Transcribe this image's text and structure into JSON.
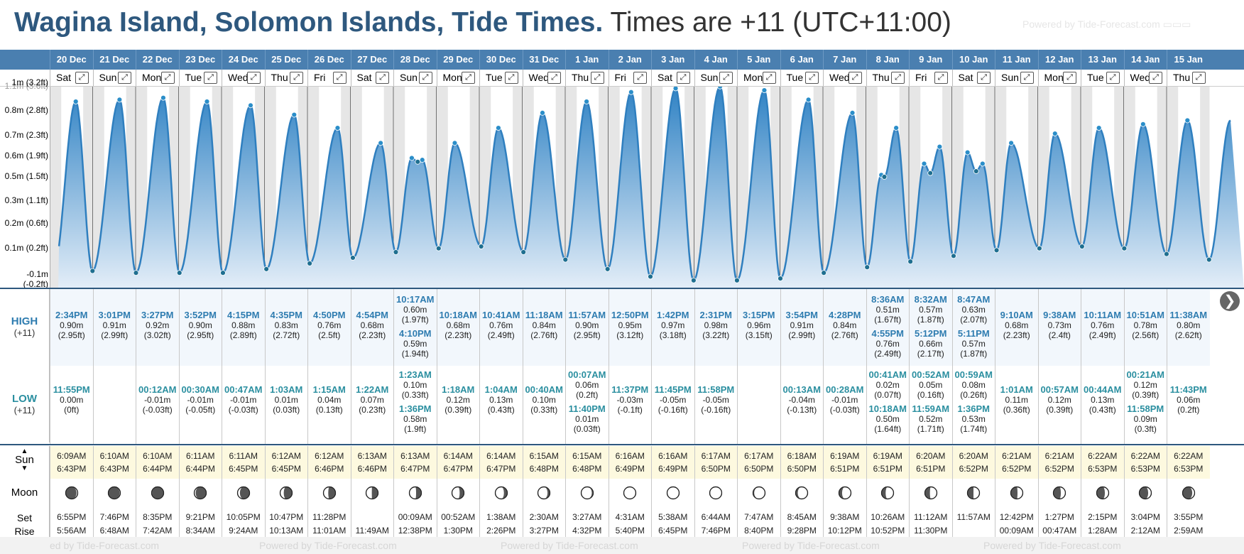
{
  "title": {
    "location": "Wagina Island, Solomon Islands, Tide Times.",
    "timezone": "Times are +11 (UTC+11:00)"
  },
  "powered_by": "Powered by Tide-Forecast.com",
  "powered_by_partial": "ed by Tide-Forecast.com",
  "y_axis_labels": [
    "1m (3.2ft)",
    "0.8m (2.8ft)",
    "0.7m (2.3ft)",
    "0.6m (1.9ft)",
    "0.5m (1.5ft)",
    "0.3m (1.1ft)",
    "0.2m (0.6ft)",
    "0.1m (0.2ft)",
    "-0.1m (-0.2ft)"
  ],
  "y_axis_partial_label": "1.1m (3.6ft)",
  "row_labels": {
    "high": "HIGH",
    "high_tz": "(+11)",
    "low": "LOW",
    "low_tz": "(+11)",
    "sun": "Sun",
    "moon": "Moon",
    "set": "Set",
    "rise": "Rise"
  },
  "days": [
    {
      "date": "20 Dec",
      "day": "Sat",
      "high": [
        {
          "time": "2:34PM",
          "m": "0.90m",
          "ft": "(2.95ft)"
        }
      ],
      "low": [
        {
          "time": "11:55PM",
          "m": "0.00m",
          "ft": "(0ft)"
        }
      ],
      "sunrise": "6:09AM",
      "sunset": "6:43PM",
      "moon_phase": 0.95,
      "moon_set": "6:55PM",
      "moon_rise": "5:56AM"
    },
    {
      "date": "21 Dec",
      "day": "Sun",
      "high": [
        {
          "time": "3:01PM",
          "m": "0.91m",
          "ft": "(2.99ft)"
        }
      ],
      "low": [],
      "sunrise": "6:10AM",
      "sunset": "6:43PM",
      "moon_phase": 0.97,
      "moon_set": "7:46PM",
      "moon_rise": "6:48AM"
    },
    {
      "date": "22 Dec",
      "day": "Mon",
      "high": [
        {
          "time": "3:27PM",
          "m": "0.92m",
          "ft": "(3.02ft)"
        }
      ],
      "low": [
        {
          "time": "00:12AM",
          "m": "-0.01m",
          "ft": "(-0.03ft)"
        }
      ],
      "sunrise": "6:10AM",
      "sunset": "6:44PM",
      "moon_phase": 0.02,
      "moon_set": "8:35PM",
      "moon_rise": "7:42AM"
    },
    {
      "date": "23 Dec",
      "day": "Tue",
      "high": [
        {
          "time": "3:52PM",
          "m": "0.90m",
          "ft": "(2.95ft)"
        }
      ],
      "low": [
        {
          "time": "00:30AM",
          "m": "-0.01m",
          "ft": "(-0.05ft)"
        }
      ],
      "sunrise": "6:11AM",
      "sunset": "6:44PM",
      "moon_phase": 0.06,
      "moon_set": "9:21PM",
      "moon_rise": "8:34AM"
    },
    {
      "date": "24 Dec",
      "day": "Wed",
      "high": [
        {
          "time": "4:15PM",
          "m": "0.88m",
          "ft": "(2.89ft)"
        }
      ],
      "low": [
        {
          "time": "00:47AM",
          "m": "-0.01m",
          "ft": "(-0.03ft)"
        }
      ],
      "sunrise": "6:11AM",
      "sunset": "6:45PM",
      "moon_phase": 0.1,
      "moon_set": "10:05PM",
      "moon_rise": "9:24AM"
    },
    {
      "date": "25 Dec",
      "day": "Thu",
      "high": [
        {
          "time": "4:35PM",
          "m": "0.83m",
          "ft": "(2.72ft)"
        }
      ],
      "low": [
        {
          "time": "1:03AM",
          "m": "0.01m",
          "ft": "(0.03ft)"
        }
      ],
      "sunrise": "6:12AM",
      "sunset": "6:45PM",
      "moon_phase": 0.15,
      "moon_set": "10:47PM",
      "moon_rise": "10:13AM"
    },
    {
      "date": "26 Dec",
      "day": "Fri",
      "high": [
        {
          "time": "4:50PM",
          "m": "0.76m",
          "ft": "(2.5ft)"
        }
      ],
      "low": [
        {
          "time": "1:15AM",
          "m": "0.04m",
          "ft": "(0.13ft)"
        }
      ],
      "sunrise": "6:12AM",
      "sunset": "6:46PM",
      "moon_phase": 0.2,
      "moon_set": "11:28PM",
      "moon_rise": "11:01AM"
    },
    {
      "date": "27 Dec",
      "day": "Sat",
      "high": [
        {
          "time": "4:54PM",
          "m": "0.68m",
          "ft": "(2.23ft)"
        }
      ],
      "low": [
        {
          "time": "1:22AM",
          "m": "0.07m",
          "ft": "(0.23ft)"
        }
      ],
      "sunrise": "6:13AM",
      "sunset": "6:46PM",
      "moon_phase": 0.24,
      "moon_set": "",
      "moon_rise": "11:49AM"
    },
    {
      "date": "28 Dec",
      "day": "Sun",
      "high": [
        {
          "time": "10:17AM",
          "m": "0.60m",
          "ft": "(1.97ft)"
        },
        {
          "time": "4:10PM",
          "m": "0.59m",
          "ft": "(1.94ft)"
        }
      ],
      "low": [
        {
          "time": "1:23AM",
          "m": "0.10m",
          "ft": "(0.33ft)"
        },
        {
          "time": "1:36PM",
          "m": "0.58m",
          "ft": "(1.9ft)"
        }
      ],
      "sunrise": "6:13AM",
      "sunset": "6:47PM",
      "moon_phase": 0.28,
      "moon_set": "00:09AM",
      "moon_rise": "12:38PM"
    },
    {
      "date": "29 Dec",
      "day": "Mon",
      "high": [
        {
          "time": "10:18AM",
          "m": "0.68m",
          "ft": "(2.23ft)"
        }
      ],
      "low": [
        {
          "time": "1:18AM",
          "m": "0.12m",
          "ft": "(0.39ft)"
        }
      ],
      "sunrise": "6:14AM",
      "sunset": "6:47PM",
      "moon_phase": 0.32,
      "moon_set": "00:52AM",
      "moon_rise": "1:30PM"
    },
    {
      "date": "30 Dec",
      "day": "Tue",
      "high": [
        {
          "time": "10:41AM",
          "m": "0.76m",
          "ft": "(2.49ft)"
        }
      ],
      "low": [
        {
          "time": "1:04AM",
          "m": "0.13m",
          "ft": "(0.43ft)"
        }
      ],
      "sunrise": "6:14AM",
      "sunset": "6:47PM",
      "moon_phase": 0.36,
      "moon_set": "1:38AM",
      "moon_rise": "2:26PM"
    },
    {
      "date": "31 Dec",
      "day": "Wed",
      "high": [
        {
          "time": "11:18AM",
          "m": "0.84m",
          "ft": "(2.76ft)"
        }
      ],
      "low": [
        {
          "time": "00:40AM",
          "m": "0.10m",
          "ft": "(0.33ft)"
        }
      ],
      "sunrise": "6:15AM",
      "sunset": "6:48PM",
      "moon_phase": 0.4,
      "moon_set": "2:30AM",
      "moon_rise": "3:27PM"
    },
    {
      "date": "1 Jan",
      "day": "Thu",
      "high": [
        {
          "time": "11:57AM",
          "m": "0.90m",
          "ft": "(2.95ft)"
        }
      ],
      "low": [
        {
          "time": "00:07AM",
          "m": "0.06m",
          "ft": "(0.2ft)"
        },
        {
          "time": "11:40PM",
          "m": "0.01m",
          "ft": "(0.03ft)"
        }
      ],
      "sunrise": "6:15AM",
      "sunset": "6:48PM",
      "moon_phase": 0.44,
      "moon_set": "3:27AM",
      "moon_rise": "4:32PM"
    },
    {
      "date": "2 Jan",
      "day": "Fri",
      "high": [
        {
          "time": "12:50PM",
          "m": "0.95m",
          "ft": "(3.12ft)"
        }
      ],
      "low": [
        {
          "time": "11:37PM",
          "m": "-0.03m",
          "ft": "(-0.1ft)"
        }
      ],
      "sunrise": "6:16AM",
      "sunset": "6:49PM",
      "moon_phase": 0.48,
      "moon_set": "4:31AM",
      "moon_rise": "5:40PM"
    },
    {
      "date": "3 Jan",
      "day": "Sat",
      "high": [
        {
          "time": "1:42PM",
          "m": "0.97m",
          "ft": "(3.18ft)"
        }
      ],
      "low": [
        {
          "time": "11:45PM",
          "m": "-0.05m",
          "ft": "(-0.16ft)"
        }
      ],
      "sunrise": "6:16AM",
      "sunset": "6:49PM",
      "moon_phase": 0.5,
      "moon_set": "5:38AM",
      "moon_rise": "6:45PM"
    },
    {
      "date": "4 Jan",
      "day": "Sun",
      "high": [
        {
          "time": "2:31PM",
          "m": "0.98m",
          "ft": "(3.22ft)"
        }
      ],
      "low": [
        {
          "time": "11:58PM",
          "m": "-0.05m",
          "ft": "(-0.16ft)"
        }
      ],
      "sunrise": "6:17AM",
      "sunset": "6:50PM",
      "moon_phase": 0.52,
      "moon_set": "6:44AM",
      "moon_rise": "7:46PM"
    },
    {
      "date": "5 Jan",
      "day": "Mon",
      "high": [
        {
          "time": "3:15PM",
          "m": "0.96m",
          "ft": "(3.15ft)"
        }
      ],
      "low": [],
      "sunrise": "6:17AM",
      "sunset": "6:50PM",
      "moon_phase": 0.55,
      "moon_set": "7:47AM",
      "moon_rise": "8:40PM"
    },
    {
      "date": "6 Jan",
      "day": "Tue",
      "high": [
        {
          "time": "3:54PM",
          "m": "0.91m",
          "ft": "(2.99ft)"
        }
      ],
      "low": [
        {
          "time": "00:13AM",
          "m": "-0.04m",
          "ft": "(-0.13ft)"
        }
      ],
      "sunrise": "6:18AM",
      "sunset": "6:50PM",
      "moon_phase": 0.59,
      "moon_set": "8:45AM",
      "moon_rise": "9:28PM"
    },
    {
      "date": "7 Jan",
      "day": "Wed",
      "high": [
        {
          "time": "4:28PM",
          "m": "0.84m",
          "ft": "(2.76ft)"
        }
      ],
      "low": [
        {
          "time": "00:28AM",
          "m": "-0.01m",
          "ft": "(-0.03ft)"
        }
      ],
      "sunrise": "6:19AM",
      "sunset": "6:51PM",
      "moon_phase": 0.63,
      "moon_set": "9:38AM",
      "moon_rise": "10:12PM"
    },
    {
      "date": "8 Jan",
      "day": "Thu",
      "high": [
        {
          "time": "8:36AM",
          "m": "0.51m",
          "ft": "(1.67ft)"
        },
        {
          "time": "4:55PM",
          "m": "0.76m",
          "ft": "(2.49ft)"
        }
      ],
      "low": [
        {
          "time": "00:41AM",
          "m": "0.02m",
          "ft": "(0.07ft)"
        },
        {
          "time": "10:18AM",
          "m": "0.50m",
          "ft": "(1.64ft)"
        }
      ],
      "sunrise": "6:19AM",
      "sunset": "6:51PM",
      "moon_phase": 0.67,
      "moon_set": "10:26AM",
      "moon_rise": "10:52PM"
    },
    {
      "date": "9 Jan",
      "day": "Fri",
      "high": [
        {
          "time": "8:32AM",
          "m": "0.57m",
          "ft": "(1.87ft)"
        },
        {
          "time": "5:12PM",
          "m": "0.66m",
          "ft": "(2.17ft)"
        }
      ],
      "low": [
        {
          "time": "00:52AM",
          "m": "0.05m",
          "ft": "(0.16ft)"
        },
        {
          "time": "11:59AM",
          "m": "0.52m",
          "ft": "(1.71ft)"
        }
      ],
      "sunrise": "6:20AM",
      "sunset": "6:51PM",
      "moon_phase": 0.71,
      "moon_set": "11:12AM",
      "moon_rise": "11:30PM"
    },
    {
      "date": "10 Jan",
      "day": "Sat",
      "high": [
        {
          "time": "8:47AM",
          "m": "0.63m",
          "ft": "(2.07ft)"
        },
        {
          "time": "5:11PM",
          "m": "0.57m",
          "ft": "(1.87ft)"
        }
      ],
      "low": [
        {
          "time": "00:59AM",
          "m": "0.08m",
          "ft": "(0.26ft)"
        },
        {
          "time": "1:36PM",
          "m": "0.53m",
          "ft": "(1.74ft)"
        }
      ],
      "sunrise": "6:20AM",
      "sunset": "6:52PM",
      "moon_phase": 0.75,
      "moon_set": "11:57AM",
      "moon_rise": ""
    },
    {
      "date": "11 Jan",
      "day": "Sun",
      "high": [
        {
          "time": "9:10AM",
          "m": "0.68m",
          "ft": "(2.23ft)"
        }
      ],
      "low": [
        {
          "time": "1:01AM",
          "m": "0.11m",
          "ft": "(0.36ft)"
        }
      ],
      "sunrise": "6:21AM",
      "sunset": "6:52PM",
      "moon_phase": 0.78,
      "moon_set": "12:42PM",
      "moon_rise": "00:09AM"
    },
    {
      "date": "12 Jan",
      "day": "Mon",
      "high": [
        {
          "time": "9:38AM",
          "m": "0.73m",
          "ft": "(2.4ft)"
        }
      ],
      "low": [
        {
          "time": "00:57AM",
          "m": "0.12m",
          "ft": "(0.39ft)"
        }
      ],
      "sunrise": "6:21AM",
      "sunset": "6:52PM",
      "moon_phase": 0.81,
      "moon_set": "1:27PM",
      "moon_rise": "00:47AM"
    },
    {
      "date": "13 Jan",
      "day": "Tue",
      "high": [
        {
          "time": "10:11AM",
          "m": "0.76m",
          "ft": "(2.49ft)"
        }
      ],
      "low": [
        {
          "time": "00:44AM",
          "m": "0.13m",
          "ft": "(0.43ft)"
        }
      ],
      "sunrise": "6:22AM",
      "sunset": "6:53PM",
      "moon_phase": 0.84,
      "moon_set": "2:15PM",
      "moon_rise": "1:28AM"
    },
    {
      "date": "14 Jan",
      "day": "Wed",
      "high": [
        {
          "time": "10:51AM",
          "m": "0.78m",
          "ft": "(2.56ft)"
        }
      ],
      "low": [
        {
          "time": "00:21AM",
          "m": "0.12m",
          "ft": "(0.39ft)"
        },
        {
          "time": "11:58PM",
          "m": "0.09m",
          "ft": "(0.3ft)"
        }
      ],
      "sunrise": "6:22AM",
      "sunset": "6:53PM",
      "moon_phase": 0.87,
      "moon_set": "3:04PM",
      "moon_rise": "2:12AM"
    },
    {
      "date": "15 Jan",
      "day": "Thu",
      "high": [
        {
          "time": "11:38AM",
          "m": "0.80m",
          "ft": "(2.62ft)"
        }
      ],
      "low": [
        {
          "time": "11:43PM",
          "m": "0.06m",
          "ft": "(0.2ft)"
        }
      ],
      "sunrise": "6:22AM",
      "sunset": "6:53PM",
      "moon_phase": 0.9,
      "moon_set": "3:55PM",
      "moon_rise": "2:59AM"
    }
  ],
  "colors": {
    "header_blue": "#4a7fb0",
    "title_blue": "#2e587e",
    "tide_fill_top": "#2f82c4",
    "tide_fill_bottom": "#e4eef8",
    "sun_row": "#fdf9df"
  }
}
